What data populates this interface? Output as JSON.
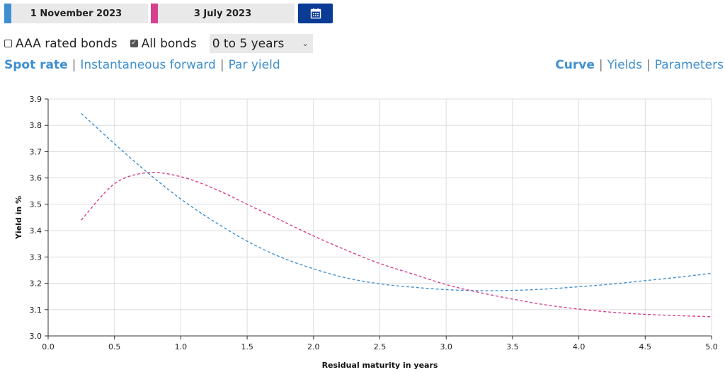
{
  "dates": {
    "first": {
      "label": "1 November 2023",
      "color": "#3f8fd0"
    },
    "second": {
      "label": "3 July 2023",
      "color": "#d63f8e"
    }
  },
  "calendar_icon": "calendar-icon",
  "options": {
    "aaa_label": "AAA rated bonds",
    "aaa_checked": false,
    "all_label": "All bonds",
    "all_checked": true,
    "range_selected": "0 to 5 years"
  },
  "views": {
    "spot": "Spot rate",
    "forward": "Instantaneous forward",
    "par": "Par yield"
  },
  "modes": {
    "curve": "Curve",
    "yields": "Yields",
    "parameters": "Parameters"
  },
  "chart_data": {
    "type": "line",
    "xlabel": "Residual maturity in years",
    "ylabel": "Yield in %",
    "xlim": [
      0,
      5
    ],
    "ylim": [
      3.0,
      3.9
    ],
    "xticks": [
      "0.0",
      "0.5",
      "1.0",
      "1.5",
      "2.0",
      "2.5",
      "3.0",
      "3.5",
      "4.0",
      "4.5",
      "5.0"
    ],
    "yticks": [
      "3.0",
      "3.1",
      "3.2",
      "3.3",
      "3.4",
      "3.5",
      "3.6",
      "3.7",
      "3.8",
      "3.9"
    ],
    "grid": true,
    "series": [
      {
        "color": "#3f8fd0",
        "x": [
          0.25,
          0.5,
          0.75,
          1.0,
          1.25,
          1.5,
          1.75,
          2.0,
          2.25,
          2.5,
          2.75,
          3.0,
          3.25,
          3.5,
          3.75,
          4.0,
          4.25,
          4.5,
          4.75,
          5.0
        ],
        "y": [
          3.845,
          3.73,
          3.62,
          3.52,
          3.435,
          3.36,
          3.3,
          3.255,
          3.22,
          3.198,
          3.185,
          3.176,
          3.172,
          3.173,
          3.178,
          3.187,
          3.197,
          3.21,
          3.223,
          3.238
        ]
      },
      {
        "color": "#d63f8e",
        "x": [
          0.25,
          0.5,
          0.75,
          1.0,
          1.25,
          1.5,
          1.75,
          2.0,
          2.25,
          2.5,
          2.75,
          3.0,
          3.25,
          3.5,
          3.75,
          4.0,
          4.25,
          4.5,
          4.75,
          5.0
        ],
        "y": [
          3.44,
          3.578,
          3.62,
          3.605,
          3.56,
          3.5,
          3.44,
          3.38,
          3.325,
          3.275,
          3.235,
          3.195,
          3.165,
          3.14,
          3.118,
          3.102,
          3.09,
          3.082,
          3.077,
          3.073
        ]
      }
    ]
  }
}
